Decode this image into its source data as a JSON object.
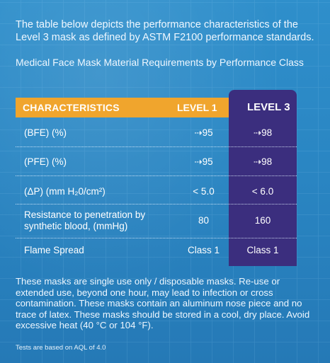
{
  "intro": "The table below depicts the performance characteristics of the Level 3 mask as defined by ASTM F2100 performance standards.",
  "subtitle": "Medical Face Mask Material Requirements by Performance Class",
  "table": {
    "headers": {
      "characteristics": "CHARACTERISTICS",
      "level1": "LEVEL 1",
      "level3": "LEVEL 3"
    },
    "rows": [
      {
        "label": "(BFE) (%)",
        "level1": "⇢95",
        "level3": "⇢98"
      },
      {
        "label": "(PFE) (%)",
        "level1": "⇢95",
        "level3": "⇢98"
      },
      {
        "label": "(ΔP) (mm H₂0/cm²)",
        "level1": "< 5.0",
        "level3": "< 6.0"
      },
      {
        "label": "Resistance to penetration by synthetic blood, (mmHg)",
        "level1": "80",
        "level3": "160"
      },
      {
        "label": "Flame Spread",
        "level1": "Class 1",
        "level3": "Class 1"
      }
    ]
  },
  "footer": "These masks are single use only / disposable masks.  Re-use or extended use, beyond one hour, may lead to infection or cross contamination. These masks contain an aluminum nose piece and no trace of latex. These masks should be stored in a cool, dry place. Avoid excessive heat (40 °C or 104 °F).",
  "note": "Tests are based on AQL of 4.0",
  "colors": {
    "background": "#2a86c3",
    "header_bar": "#f0a52d",
    "level3_column": "#3b2e7e"
  }
}
